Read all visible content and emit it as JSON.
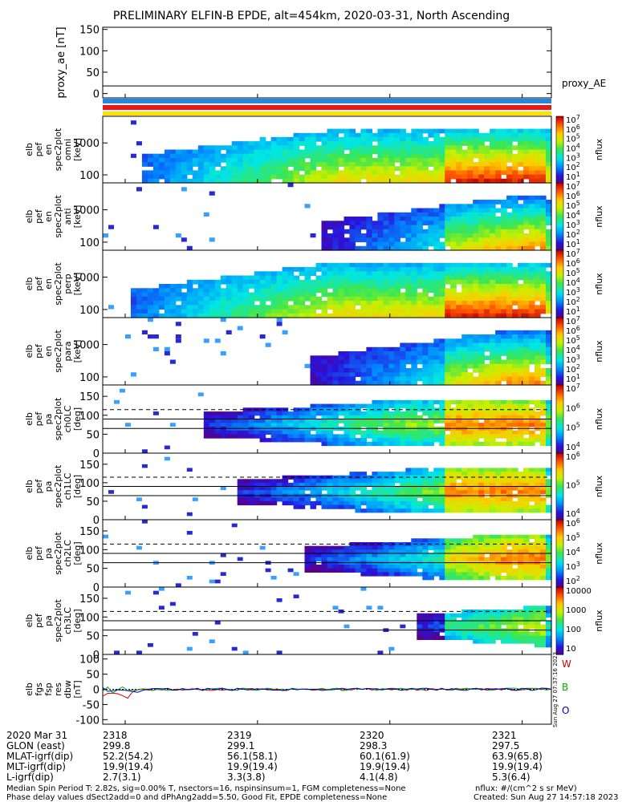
{
  "title": "PRELIMINARY ELFIN-B EPDE, alt=454km, 2020-03-31, North Ascending",
  "colors": {
    "line": "#000000",
    "bar_blue": "#1f88e6",
    "bar_red": "#f21414",
    "bar_yellow": "#ffe000",
    "legend_W": "#d00000",
    "legend_B": "#00b000",
    "legend_O": "#0000c8"
  },
  "chart_data": [
    {
      "type": "line",
      "ylabel": "proxy_ae [nT]",
      "yticks": [
        "150",
        "100",
        "50",
        "0"
      ],
      "yrange": [
        -10,
        155
      ],
      "series": [
        {
          "name": "proxy_AE",
          "values": [
            18,
            18
          ]
        }
      ],
      "right_label": "proxy_AE"
    },
    {
      "type": "heatmap",
      "ylabel": [
        "elb",
        "pef",
        "en",
        "spec2plot",
        "omni",
        "[keV]"
      ],
      "yscale": "log",
      "yticks": [
        "1000",
        "100"
      ],
      "colorbar": {
        "label": "nflux",
        "ticks": [
          "10^7",
          "10^6",
          "10^5",
          "10^4",
          "10^3",
          "10^2",
          "10^1"
        ]
      }
    },
    {
      "type": "heatmap",
      "ylabel": [
        "elb",
        "pef",
        "en",
        "spec2plot",
        "anti",
        "[keV]"
      ],
      "yscale": "log",
      "yticks": [
        "1000",
        "100"
      ],
      "colorbar": {
        "label": "nflux",
        "ticks": [
          "10^7",
          "10^6",
          "10^5",
          "10^4",
          "10^3",
          "10^2",
          "10^1"
        ]
      }
    },
    {
      "type": "heatmap",
      "ylabel": [
        "elb",
        "pef",
        "en",
        "spec2plot",
        "perp",
        "[keV]"
      ],
      "yscale": "log",
      "yticks": [
        "1000",
        "100"
      ],
      "colorbar": {
        "label": "nflux",
        "ticks": [
          "10^7",
          "10^6",
          "10^5",
          "10^4",
          "10^3",
          "10^2",
          "10^1"
        ]
      }
    },
    {
      "type": "heatmap",
      "ylabel": [
        "elb",
        "pef",
        "en",
        "spec2plot",
        "para",
        "[keV]"
      ],
      "yscale": "log",
      "yticks": [
        "1000",
        "100"
      ],
      "colorbar": {
        "label": "nflux",
        "ticks": [
          "10^7",
          "10^6",
          "10^5",
          "10^4",
          "10^3",
          "10^2",
          "10^1"
        ]
      }
    },
    {
      "type": "heatmap",
      "ylabel": [
        "elb",
        "pef",
        "pa",
        "spec2plot",
        "ch0LC",
        "[deg]"
      ],
      "yticks": [
        "150",
        "100",
        "50",
        "0"
      ],
      "colorbar": {
        "label": "nflux",
        "ticks": [
          "10^7",
          "10^6",
          "10^5",
          "10^4"
        ]
      }
    },
    {
      "type": "heatmap",
      "ylabel": [
        "elb",
        "pef",
        "pa",
        "spec2plot",
        "ch1LC",
        "[deg]"
      ],
      "yticks": [
        "150",
        "100",
        "50",
        "0"
      ],
      "colorbar": {
        "label": "nflux",
        "ticks": [
          "10^6",
          "10^5",
          "10^4"
        ]
      }
    },
    {
      "type": "heatmap",
      "ylabel": [
        "elb",
        "pef",
        "pa",
        "spec2plot",
        "ch2LC",
        "[deg]"
      ],
      "yticks": [
        "150",
        "100",
        "50",
        "0"
      ],
      "colorbar": {
        "label": "nflux",
        "ticks": [
          "10^6",
          "10^5",
          "10^4",
          "10^3",
          "10^2"
        ]
      }
    },
    {
      "type": "heatmap",
      "ylabel": [
        "elb",
        "pef",
        "pa",
        "spec2plot",
        "ch3LC",
        "[deg]"
      ],
      "yticks": [
        "150",
        "100",
        "50",
        "0"
      ],
      "colorbar": {
        "label": "nflux",
        "ticks": [
          "10000",
          "1000",
          "100",
          "10"
        ]
      }
    },
    {
      "type": "line",
      "ylabel": [
        "elb",
        "fgs",
        "fsp",
        "res",
        "dbw",
        "[nT]"
      ],
      "yticks": [
        "100",
        "50",
        "0",
        "-50",
        "-100"
      ],
      "yrange": [
        -115,
        115
      ],
      "legend": [
        "W",
        "B",
        "O"
      ]
    }
  ],
  "x_axis": {
    "ticks": [
      "2318",
      "2319",
      "2320",
      "2321"
    ],
    "rows": [
      {
        "label": "2020 Mar 31",
        "values": [
          "2318",
          "2319",
          "2320",
          "2321"
        ]
      },
      {
        "label": "GLON (east)",
        "values": [
          "299.8",
          "299.1",
          "298.3",
          "297.5"
        ]
      },
      {
        "label": "MLAT-igrf(dip)",
        "values": [
          "52.2(54.2)",
          "56.1(58.1)",
          "60.1(61.9)",
          "63.9(65.8)"
        ]
      },
      {
        "label": "MLT-igrf(dip)",
        "values": [
          "19.9(19.4)",
          "19.9(19.4)",
          "19.9(19.4)",
          "19.9(19.4)"
        ]
      },
      {
        "label": "L-igrf(dip)",
        "values": [
          "2.7(3.1)",
          "3.3(3.8)",
          "4.1(4.8)",
          "5.3(6.4)"
        ]
      }
    ]
  },
  "footer": {
    "left1": "Median Spin Period T: 2.82s, sig=0.00% T, nsectors=16, nspinsinsum=1, FGM completeness=None",
    "left2": "Phase delay values dSect2add=0 and dPhAng2add=5.50, Good Fit, EPDE completeness=None",
    "right1": "nflux: #/(cm^2 s sr MeV)",
    "right2": "Created: Sun Aug 27 14:57:18 2023"
  },
  "side_stamp": "Sun Aug 27 07:37:16 2023"
}
